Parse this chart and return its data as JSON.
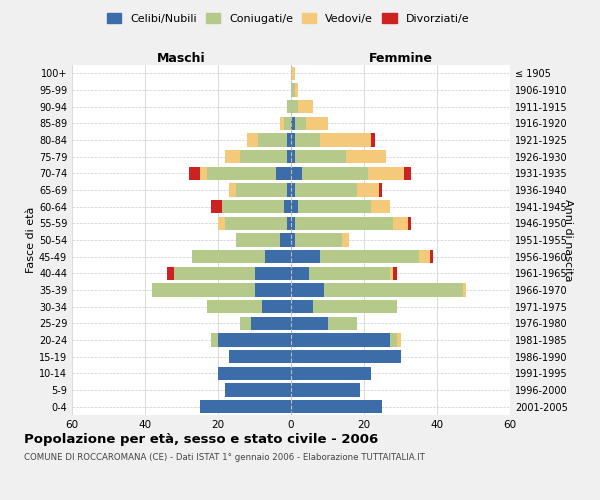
{
  "age_groups": [
    "0-4",
    "5-9",
    "10-14",
    "15-19",
    "20-24",
    "25-29",
    "30-34",
    "35-39",
    "40-44",
    "45-49",
    "50-54",
    "55-59",
    "60-64",
    "65-69",
    "70-74",
    "75-79",
    "80-84",
    "85-89",
    "90-94",
    "95-99",
    "100+"
  ],
  "birth_years": [
    "2001-2005",
    "1996-2000",
    "1991-1995",
    "1986-1990",
    "1981-1985",
    "1976-1980",
    "1971-1975",
    "1966-1970",
    "1961-1965",
    "1956-1960",
    "1951-1955",
    "1946-1950",
    "1941-1945",
    "1936-1940",
    "1931-1935",
    "1926-1930",
    "1921-1925",
    "1916-1920",
    "1911-1915",
    "1906-1910",
    "≤ 1905"
  ],
  "colors": {
    "celibi": "#3d6da8",
    "coniugati": "#b5c98a",
    "vedovi": "#f5c97a",
    "divorziati": "#cc2222"
  },
  "males": {
    "celibi": [
      25,
      18,
      20,
      17,
      20,
      11,
      8,
      10,
      10,
      7,
      3,
      1,
      2,
      1,
      4,
      1,
      1,
      0,
      0,
      0,
      0
    ],
    "coniugati": [
      0,
      0,
      0,
      0,
      2,
      3,
      15,
      28,
      22,
      20,
      12,
      17,
      17,
      14,
      19,
      13,
      8,
      2,
      1,
      0,
      0
    ],
    "vedovi": [
      0,
      0,
      0,
      0,
      0,
      0,
      0,
      0,
      0,
      0,
      0,
      2,
      0,
      2,
      2,
      4,
      3,
      1,
      0,
      0,
      0
    ],
    "divorziati": [
      0,
      0,
      0,
      0,
      0,
      0,
      0,
      0,
      2,
      0,
      0,
      0,
      3,
      0,
      3,
      0,
      0,
      0,
      0,
      0,
      0
    ]
  },
  "females": {
    "celibi": [
      25,
      19,
      22,
      30,
      27,
      10,
      6,
      9,
      5,
      8,
      1,
      1,
      2,
      1,
      3,
      1,
      1,
      1,
      0,
      0,
      0
    ],
    "coniugati": [
      0,
      0,
      0,
      0,
      2,
      8,
      23,
      38,
      22,
      27,
      13,
      27,
      20,
      17,
      18,
      14,
      7,
      3,
      2,
      1,
      0
    ],
    "vedovi": [
      0,
      0,
      0,
      0,
      1,
      0,
      0,
      1,
      1,
      3,
      2,
      4,
      5,
      6,
      10,
      11,
      14,
      6,
      4,
      1,
      1
    ],
    "divorziati": [
      0,
      0,
      0,
      0,
      0,
      0,
      0,
      0,
      1,
      1,
      0,
      1,
      0,
      1,
      2,
      0,
      1,
      0,
      0,
      0,
      0
    ]
  },
  "title": "Popolazione per età, sesso e stato civile - 2006",
  "subtitle": "COMUNE DI ROCCAROMANA (CE) - Dati ISTAT 1° gennaio 2006 - Elaborazione TUTTAITALIA.IT",
  "xlabel_left": "Maschi",
  "xlabel_right": "Femmine",
  "ylabel_left": "Fasce di età",
  "ylabel_right": "Anni di nascita",
  "xlim": 60,
  "background_color": "#f0f0f0",
  "plot_background": "#ffffff",
  "legend_labels": [
    "Celibi/Nubili",
    "Coniugati/e",
    "Vedovi/e",
    "Divorziati/e"
  ]
}
